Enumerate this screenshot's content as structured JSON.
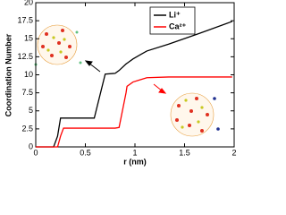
{
  "chart_data": {
    "type": "line",
    "x_label": "r (nm)",
    "y_label": "Coordination Number",
    "x": [
      0,
      0.18,
      0.22,
      0.25,
      0.28,
      0.59,
      0.7,
      0.8,
      0.84,
      0.91,
      0.92,
      0.98,
      1.05,
      1.12,
      1.34,
      1.65,
      1.98
    ],
    "series": [
      {
        "name": "Li⁺",
        "color": "#000000",
        "values": [
          0,
          0,
          1.5,
          4,
          4,
          4,
          10.1,
          10.2,
          10.6,
          11.5,
          11.6,
          12.2,
          12.75,
          13.3,
          14.25,
          15.75,
          17.4
        ]
      },
      {
        "name": "Ca²⁺",
        "color": "#ff0000",
        "values": [
          0,
          0,
          0,
          1.5,
          2.6,
          2.6,
          2.6,
          2.6,
          2.7,
          7.5,
          8.4,
          9.0,
          9.3,
          9.6,
          9.7,
          9.7,
          9.7
        ]
      }
    ],
    "xlim": [
      0,
      2
    ],
    "xticks": [
      0,
      0.5,
      1,
      1.5,
      2
    ],
    "ylim": [
      0,
      20
    ],
    "yticks": [
      0,
      2.5,
      5,
      7.5,
      10,
      12.5,
      15,
      17.5,
      20
    ],
    "legend": "upper center"
  }
}
